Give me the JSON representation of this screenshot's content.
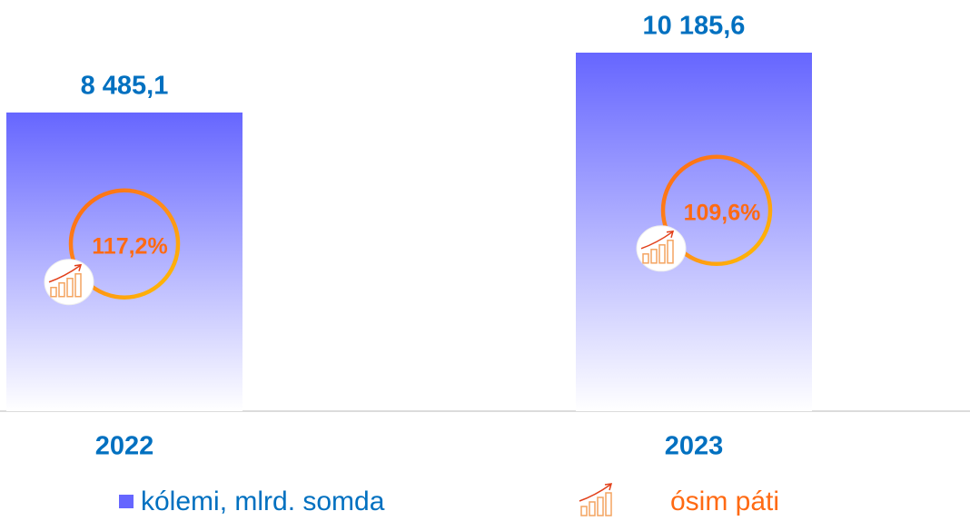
{
  "chart_data": {
    "type": "bar",
    "categories": [
      "2022",
      "2023"
    ],
    "series": [
      {
        "name": "kólemi, mlrd. somda",
        "color": "#6666ff",
        "values": [
          8485.1,
          10185.6
        ],
        "value_labels": [
          "8 485,1",
          "10 185,6"
        ]
      },
      {
        "name": "ósim páti",
        "color": "#ff6a13",
        "values": [
          117.2,
          109.6
        ],
        "value_labels": [
          "117,2%",
          "109,6%"
        ]
      }
    ]
  }
}
